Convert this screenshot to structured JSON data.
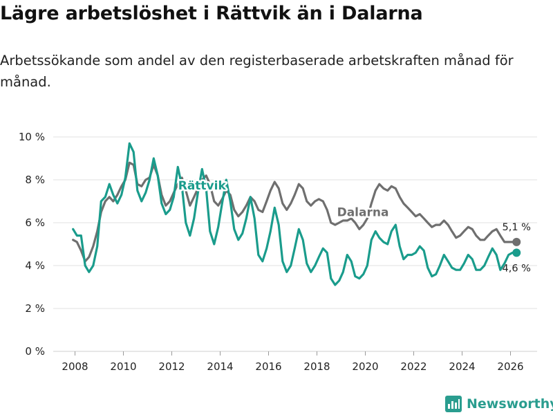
{
  "title": "Lägre arbetslöshet i Rättvik än i Dalarna",
  "subtitle": "Arbetssökande som andel av den registerbaserade arbetskraften månad för månad.",
  "brand": {
    "name": "Newsworthy",
    "color": "#2a9d8f",
    "icon": "bar-chart-logo-icon"
  },
  "chart_data": {
    "type": "line",
    "xlim": [
      2007.1,
      2027.1
    ],
    "ylim": [
      0,
      10
    ],
    "x_ticks": [
      2008,
      2010,
      2012,
      2014,
      2016,
      2018,
      2020,
      2022,
      2024,
      2026
    ],
    "x_tick_labels": [
      "2008",
      "2010",
      "2012",
      "2014",
      "2016",
      "2018",
      "2020",
      "2022",
      "2024",
      "2026"
    ],
    "y_ticks": [
      0,
      2,
      4,
      6,
      8,
      10
    ],
    "y_tick_labels": [
      "0 %",
      "2 %",
      "4 %",
      "6 %",
      "8 %",
      "10 %"
    ],
    "grid": "horizontal",
    "series": [
      {
        "name": "Dalarna",
        "color": "#6f6f6f",
        "end_label": "5,1 %",
        "end_point": [
          2026.25,
          5.1
        ],
        "points": [
          [
            2007.92,
            5.2
          ],
          [
            2008.08,
            5.1
          ],
          [
            2008.25,
            4.7
          ],
          [
            2008.42,
            4.2
          ],
          [
            2008.58,
            4.4
          ],
          [
            2008.75,
            4.9
          ],
          [
            2008.92,
            5.6
          ],
          [
            2009.08,
            6.5
          ],
          [
            2009.25,
            7.0
          ],
          [
            2009.42,
            7.2
          ],
          [
            2009.58,
            7.0
          ],
          [
            2009.75,
            7.3
          ],
          [
            2009.92,
            7.7
          ],
          [
            2010.08,
            8.0
          ],
          [
            2010.25,
            8.8
          ],
          [
            2010.42,
            8.7
          ],
          [
            2010.58,
            7.8
          ],
          [
            2010.75,
            7.7
          ],
          [
            2010.92,
            8.0
          ],
          [
            2011.08,
            8.1
          ],
          [
            2011.25,
            8.7
          ],
          [
            2011.42,
            8.2
          ],
          [
            2011.58,
            7.3
          ],
          [
            2011.75,
            6.8
          ],
          [
            2011.92,
            7.0
          ],
          [
            2012.08,
            7.4
          ],
          [
            2012.25,
            7.8
          ],
          [
            2012.42,
            8.1
          ],
          [
            2012.58,
            7.5
          ],
          [
            2012.75,
            6.8
          ],
          [
            2012.92,
            7.2
          ],
          [
            2013.08,
            7.6
          ],
          [
            2013.25,
            8.0
          ],
          [
            2013.42,
            8.2
          ],
          [
            2013.58,
            7.8
          ],
          [
            2013.75,
            7.0
          ],
          [
            2013.92,
            6.8
          ],
          [
            2014.08,
            7.1
          ],
          [
            2014.25,
            7.5
          ],
          [
            2014.42,
            7.3
          ],
          [
            2014.58,
            6.6
          ],
          [
            2014.75,
            6.3
          ],
          [
            2014.92,
            6.5
          ],
          [
            2015.08,
            6.8
          ],
          [
            2015.25,
            7.2
          ],
          [
            2015.42,
            7.0
          ],
          [
            2015.58,
            6.6
          ],
          [
            2015.75,
            6.5
          ],
          [
            2015.92,
            7.0
          ],
          [
            2016.08,
            7.5
          ],
          [
            2016.25,
            7.9
          ],
          [
            2016.42,
            7.6
          ],
          [
            2016.58,
            6.9
          ],
          [
            2016.75,
            6.6
          ],
          [
            2016.92,
            6.9
          ],
          [
            2017.08,
            7.3
          ],
          [
            2017.25,
            7.8
          ],
          [
            2017.42,
            7.6
          ],
          [
            2017.58,
            7.0
          ],
          [
            2017.75,
            6.8
          ],
          [
            2017.92,
            7.0
          ],
          [
            2018.08,
            7.1
          ],
          [
            2018.25,
            7.0
          ],
          [
            2018.42,
            6.6
          ],
          [
            2018.58,
            6.0
          ],
          [
            2018.75,
            5.9
          ],
          [
            2018.92,
            6.0
          ],
          [
            2019.08,
            6.1
          ],
          [
            2019.25,
            6.1
          ],
          [
            2019.42,
            6.2
          ],
          [
            2019.58,
            6.0
          ],
          [
            2019.75,
            5.7
          ],
          [
            2019.92,
            5.9
          ],
          [
            2020.08,
            6.2
          ],
          [
            2020.25,
            6.9
          ],
          [
            2020.42,
            7.5
          ],
          [
            2020.58,
            7.8
          ],
          [
            2020.75,
            7.6
          ],
          [
            2020.92,
            7.5
          ],
          [
            2021.08,
            7.7
          ],
          [
            2021.25,
            7.6
          ],
          [
            2021.42,
            7.2
          ],
          [
            2021.58,
            6.9
          ],
          [
            2021.75,
            6.7
          ],
          [
            2021.92,
            6.5
          ],
          [
            2022.08,
            6.3
          ],
          [
            2022.25,
            6.4
          ],
          [
            2022.42,
            6.2
          ],
          [
            2022.58,
            6.0
          ],
          [
            2022.75,
            5.8
          ],
          [
            2022.92,
            5.9
          ],
          [
            2023.08,
            5.9
          ],
          [
            2023.25,
            6.1
          ],
          [
            2023.42,
            5.9
          ],
          [
            2023.58,
            5.6
          ],
          [
            2023.75,
            5.3
          ],
          [
            2023.92,
            5.4
          ],
          [
            2024.08,
            5.6
          ],
          [
            2024.25,
            5.8
          ],
          [
            2024.42,
            5.7
          ],
          [
            2024.58,
            5.4
          ],
          [
            2024.75,
            5.2
          ],
          [
            2024.92,
            5.2
          ],
          [
            2025.08,
            5.4
          ],
          [
            2025.25,
            5.6
          ],
          [
            2025.42,
            5.7
          ],
          [
            2025.58,
            5.4
          ],
          [
            2025.75,
            5.1
          ],
          [
            2025.92,
            5.1
          ],
          [
            2026.08,
            5.1
          ],
          [
            2026.25,
            5.1
          ]
        ]
      },
      {
        "name": "Rättvik",
        "color": "#1a9c8c",
        "end_label": "4,6 %",
        "end_point": [
          2026.25,
          4.6
        ],
        "points": [
          [
            2007.92,
            5.7
          ],
          [
            2008.08,
            5.4
          ],
          [
            2008.25,
            5.4
          ],
          [
            2008.42,
            4.0
          ],
          [
            2008.58,
            3.7
          ],
          [
            2008.75,
            4.0
          ],
          [
            2008.92,
            4.9
          ],
          [
            2009.08,
            7.0
          ],
          [
            2009.25,
            7.2
          ],
          [
            2009.42,
            7.8
          ],
          [
            2009.58,
            7.3
          ],
          [
            2009.75,
            6.9
          ],
          [
            2009.92,
            7.3
          ],
          [
            2010.08,
            8.1
          ],
          [
            2010.25,
            9.7
          ],
          [
            2010.42,
            9.3
          ],
          [
            2010.58,
            7.5
          ],
          [
            2010.75,
            7.0
          ],
          [
            2010.92,
            7.4
          ],
          [
            2011.08,
            8.0
          ],
          [
            2011.25,
            9.0
          ],
          [
            2011.42,
            8.2
          ],
          [
            2011.58,
            6.9
          ],
          [
            2011.75,
            6.4
          ],
          [
            2011.92,
            6.6
          ],
          [
            2012.08,
            7.2
          ],
          [
            2012.25,
            8.6
          ],
          [
            2012.42,
            7.7
          ],
          [
            2012.58,
            6.0
          ],
          [
            2012.75,
            5.4
          ],
          [
            2012.92,
            6.2
          ],
          [
            2013.08,
            7.4
          ],
          [
            2013.25,
            8.5
          ],
          [
            2013.42,
            7.6
          ],
          [
            2013.58,
            5.6
          ],
          [
            2013.75,
            5.0
          ],
          [
            2013.92,
            5.8
          ],
          [
            2014.08,
            6.9
          ],
          [
            2014.25,
            8.0
          ],
          [
            2014.42,
            7.0
          ],
          [
            2014.58,
            5.7
          ],
          [
            2014.75,
            5.2
          ],
          [
            2014.92,
            5.5
          ],
          [
            2015.08,
            6.2
          ],
          [
            2015.25,
            7.2
          ],
          [
            2015.42,
            6.2
          ],
          [
            2015.58,
            4.5
          ],
          [
            2015.75,
            4.2
          ],
          [
            2015.92,
            4.8
          ],
          [
            2016.08,
            5.6
          ],
          [
            2016.25,
            6.7
          ],
          [
            2016.42,
            5.9
          ],
          [
            2016.58,
            4.2
          ],
          [
            2016.75,
            3.7
          ],
          [
            2016.92,
            4.0
          ],
          [
            2017.08,
            4.8
          ],
          [
            2017.25,
            5.7
          ],
          [
            2017.42,
            5.2
          ],
          [
            2017.58,
            4.1
          ],
          [
            2017.75,
            3.7
          ],
          [
            2017.92,
            4.0
          ],
          [
            2018.08,
            4.4
          ],
          [
            2018.25,
            4.8
          ],
          [
            2018.42,
            4.6
          ],
          [
            2018.58,
            3.4
          ],
          [
            2018.75,
            3.1
          ],
          [
            2018.92,
            3.3
          ],
          [
            2019.08,
            3.7
          ],
          [
            2019.25,
            4.5
          ],
          [
            2019.42,
            4.2
          ],
          [
            2019.58,
            3.5
          ],
          [
            2019.75,
            3.4
          ],
          [
            2019.92,
            3.6
          ],
          [
            2020.08,
            4.0
          ],
          [
            2020.25,
            5.2
          ],
          [
            2020.42,
            5.6
          ],
          [
            2020.58,
            5.3
          ],
          [
            2020.75,
            5.1
          ],
          [
            2020.92,
            5.0
          ],
          [
            2021.08,
            5.6
          ],
          [
            2021.25,
            5.9
          ],
          [
            2021.42,
            4.9
          ],
          [
            2021.58,
            4.3
          ],
          [
            2021.75,
            4.5
          ],
          [
            2021.92,
            4.5
          ],
          [
            2022.08,
            4.6
          ],
          [
            2022.25,
            4.9
          ],
          [
            2022.42,
            4.7
          ],
          [
            2022.58,
            3.9
          ],
          [
            2022.75,
            3.5
          ],
          [
            2022.92,
            3.6
          ],
          [
            2023.08,
            4.0
          ],
          [
            2023.25,
            4.5
          ],
          [
            2023.42,
            4.2
          ],
          [
            2023.58,
            3.9
          ],
          [
            2023.75,
            3.8
          ],
          [
            2023.92,
            3.8
          ],
          [
            2024.08,
            4.1
          ],
          [
            2024.25,
            4.5
          ],
          [
            2024.42,
            4.3
          ],
          [
            2024.58,
            3.8
          ],
          [
            2024.75,
            3.8
          ],
          [
            2024.92,
            4.0
          ],
          [
            2025.08,
            4.4
          ],
          [
            2025.25,
            4.8
          ],
          [
            2025.42,
            4.5
          ],
          [
            2025.58,
            3.8
          ],
          [
            2025.75,
            4.1
          ],
          [
            2025.92,
            4.5
          ],
          [
            2026.08,
            4.6
          ],
          [
            2026.25,
            4.6
          ]
        ]
      }
    ]
  }
}
